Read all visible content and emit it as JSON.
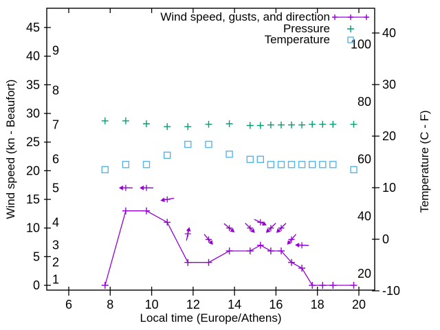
{
  "background": "#ffffff",
  "text_color": "#000000",
  "chart_data": {
    "type": "line",
    "title": "",
    "xlabel": "Local time (Europe/Athens)",
    "ylabel_left": "Wind speed (kn - Beaufort)",
    "ylabel_right": "Temperature (C - F)",
    "grid": false,
    "legend_position": "top-right-inside",
    "x_ticks": [
      6,
      8,
      10,
      12,
      14,
      16,
      18,
      20
    ],
    "x_range": [
      4.94,
      20.7
    ],
    "left_axis": {
      "unit": "kn",
      "ticks": [
        0,
        5,
        10,
        15,
        20,
        25,
        30,
        35,
        40,
        45
      ],
      "range": [
        -0.8,
        48.4
      ]
    },
    "beaufort_labels": [
      {
        "label": "1",
        "kn": 1
      },
      {
        "label": "2",
        "kn": 4
      },
      {
        "label": "3",
        "kn": 7
      },
      {
        "label": "4",
        "kn": 11
      },
      {
        "label": "5",
        "kn": 17
      },
      {
        "label": "6",
        "kn": 22
      },
      {
        "label": "7",
        "kn": 28
      },
      {
        "label": "8",
        "kn": 34
      },
      {
        "label": "9",
        "kn": 41
      }
    ],
    "right_axis": {
      "unit": "C",
      "ticks": [
        -10,
        0,
        10,
        20,
        30,
        40
      ],
      "range": [
        -9.9,
        44.8
      ]
    },
    "fahrenheit_labels": [
      {
        "label": "20",
        "f": 20
      },
      {
        "label": "40",
        "f": 40
      },
      {
        "label": "60",
        "f": 60
      },
      {
        "label": "80",
        "f": 80
      },
      {
        "label": "100",
        "f": 100
      }
    ],
    "hours": [
      7.75,
      8.75,
      9.75,
      10.75,
      11.75,
      12.75,
      13.75,
      14.75,
      15.25,
      15.75,
      16.25,
      16.75,
      17.25,
      17.75,
      18.25,
      18.75,
      19.75
    ],
    "series": [
      {
        "name": "Wind speed, gusts, and direction",
        "id": "wind",
        "color": "#9400d3",
        "marker": "plus-line",
        "axis": "kn",
        "values": [
          0,
          13,
          13,
          11,
          4,
          4,
          6,
          6,
          7,
          6,
          6,
          4,
          3,
          0,
          0,
          0,
          0
        ]
      },
      {
        "name": "",
        "id": "gusts",
        "color": "#9400d3",
        "marker": "vector",
        "axis": "kn",
        "points": [
          {
            "h": 8.75,
            "kn": 17,
            "dir": 180
          },
          {
            "h": 9.75,
            "kn": 17,
            "dir": 180
          },
          {
            "h": 10.75,
            "kn": 15,
            "dir": 190
          },
          {
            "h": 11.75,
            "kn": 9,
            "dir": 78
          },
          {
            "h": 12.75,
            "kn": 8,
            "dir": -50
          },
          {
            "h": 13.75,
            "kn": 10,
            "dir": -40
          },
          {
            "h": 14.75,
            "kn": 10,
            "dir": -45
          },
          {
            "h": 15.25,
            "kn": 11,
            "dir": -25
          },
          {
            "h": 15.75,
            "kn": 10,
            "dir": -135
          },
          {
            "h": 16.25,
            "kn": 10,
            "dir": -135
          },
          {
            "h": 16.75,
            "kn": 8,
            "dir": -130
          },
          {
            "h": 17.25,
            "kn": 7,
            "dir": 178
          }
        ]
      },
      {
        "name": "Pressure",
        "id": "pressure",
        "color": "#009e73",
        "marker": "plus",
        "axis": "kn",
        "values": [
          28.7,
          28.7,
          28.2,
          27.7,
          27.7,
          28.1,
          28.2,
          27.9,
          27.9,
          28.0,
          28.0,
          28.0,
          28.0,
          28.1,
          28.1,
          28.1,
          28.1
        ]
      },
      {
        "name": "Temperature",
        "id": "temperature",
        "color": "#56b4e9",
        "marker": "square",
        "axis": "C",
        "values": [
          13.5,
          14.5,
          14.5,
          16.3,
          18.4,
          18.4,
          16.5,
          15.5,
          15.5,
          14.5,
          14.5,
          14.5,
          14.5,
          14.5,
          14.5,
          14.5,
          13.5
        ]
      }
    ]
  }
}
